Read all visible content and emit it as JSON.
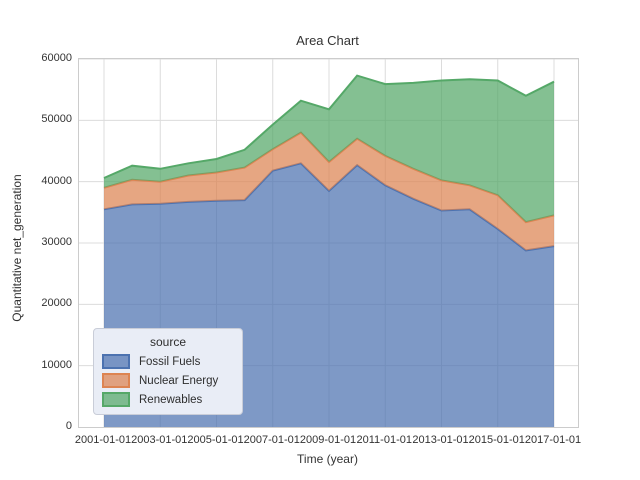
{
  "figure": {
    "title": "Area Chart",
    "xlabel": "Time (year)",
    "ylabel": "Quantitative net_generation"
  },
  "axes": {
    "x_ticks": [
      "2001-01-01",
      "2003-01-01",
      "2005-01-01",
      "2007-01-01",
      "2009-01-01",
      "2011-01-01",
      "2013-01-01",
      "2015-01-01",
      "2017-01-01"
    ],
    "y_ticks": [
      "0",
      "10000",
      "20000",
      "30000",
      "40000",
      "50000",
      "60000"
    ]
  },
  "legend": {
    "title": "source",
    "items": [
      {
        "label": "Fossil Fuels",
        "color": "#4c72b0"
      },
      {
        "label": "Nuclear Energy",
        "color": "#dd8452"
      },
      {
        "label": "Renewables",
        "color": "#55a868"
      }
    ]
  },
  "colors": {
    "grid": "#dcdcdc",
    "spine": "#cccccc",
    "text": "#333333",
    "fossil": "#4c72b0",
    "nuclear": "#dd8452",
    "renewables": "#55a868"
  },
  "chart_data": {
    "type": "area",
    "stacked": true,
    "title": "Area Chart",
    "xlabel": "Time (year)",
    "ylabel": "Quantitative net_generation",
    "x": [
      2001,
      2002,
      2003,
      2004,
      2005,
      2006,
      2007,
      2008,
      2009,
      2010,
      2011,
      2012,
      2013,
      2014,
      2015,
      2016,
      2017
    ],
    "x_tick_labels": [
      "2001-01-01",
      "2003-01-01",
      "2005-01-01",
      "2007-01-01",
      "2009-01-01",
      "2011-01-01",
      "2013-01-01",
      "2015-01-01",
      "2017-01-01"
    ],
    "series": [
      {
        "name": "Fossil Fuels",
        "color": "#4c72b0",
        "values": [
          35500,
          36300,
          36400,
          36700,
          36900,
          37000,
          41800,
          43000,
          38500,
          42700,
          39400,
          37200,
          35300,
          35500,
          32300,
          28800,
          29500
        ]
      },
      {
        "name": "Nuclear Energy",
        "color": "#dd8452",
        "values": [
          3500,
          4000,
          3600,
          4300,
          4600,
          5300,
          3500,
          5000,
          4700,
          4300,
          4800,
          4900,
          4900,
          3900,
          5500,
          4600,
          5000
        ]
      },
      {
        "name": "Renewables",
        "color": "#55a868",
        "values": [
          1600,
          2300,
          2100,
          2000,
          2200,
          2900,
          4000,
          5200,
          8600,
          10300,
          11700,
          14000,
          16300,
          17300,
          18700,
          20600,
          21800
        ]
      }
    ],
    "stacked_totals": [
      40600,
      42600,
      42100,
      43000,
      43700,
      45200,
      49300,
      53200,
      51800,
      57300,
      55900,
      56100,
      56500,
      56700,
      56500,
      54000,
      56300
    ],
    "ylim": [
      0,
      60000
    ],
    "grid": true,
    "fill_opacity": 0.72,
    "legend_title": "source",
    "legend_position": "lower-left"
  }
}
